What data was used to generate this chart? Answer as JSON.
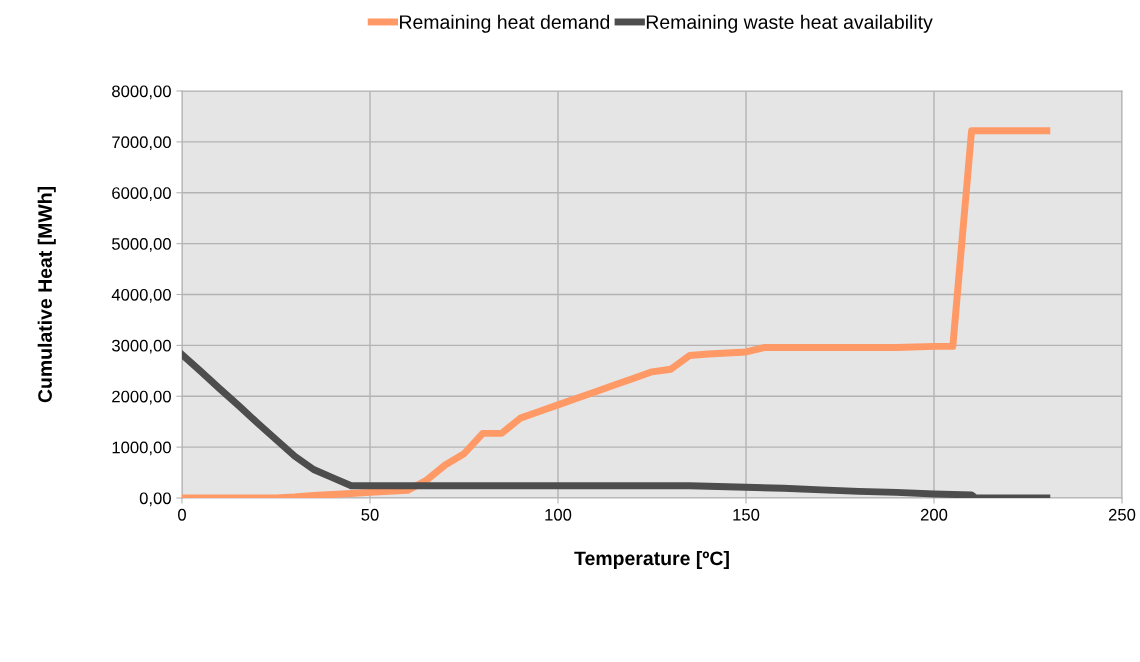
{
  "chart_data": {
    "type": "line",
    "xlabel": "Temperature [ºC]",
    "ylabel": "Cumulative Heat [MWh]",
    "xlim": [
      0,
      250
    ],
    "xticks": [
      0,
      50,
      100,
      150,
      200,
      250
    ],
    "ylim": [
      0,
      8000
    ],
    "yticks": [
      {
        "value": 0,
        "label": "0,00"
      },
      {
        "value": 1000,
        "label": "1000,00"
      },
      {
        "value": 2000,
        "label": "2000,00"
      },
      {
        "value": 3000,
        "label": "3000,00"
      },
      {
        "value": 4000,
        "label": "4000,00"
      },
      {
        "value": 5000,
        "label": "5000,00"
      },
      {
        "value": 6000,
        "label": "6000,00"
      },
      {
        "value": 7000,
        "label": "7000,00"
      },
      {
        "value": 8000,
        "label": "8000,00"
      }
    ],
    "grid": true,
    "legend": "top",
    "marker": "none",
    "line_style": "solid",
    "series": [
      {
        "name": "Remaining heat demand",
        "color": "#ff9966",
        "x": [
          0,
          25,
          30,
          35,
          40,
          45,
          50,
          55,
          60,
          65,
          70,
          75,
          80,
          85,
          90,
          95,
          100,
          105,
          110,
          115,
          120,
          125,
          130,
          135,
          140,
          145,
          150,
          155,
          160,
          170,
          180,
          190,
          200,
          205,
          210,
          215,
          220,
          230
        ],
        "values": [
          0,
          0,
          20,
          50,
          70,
          90,
          110,
          130,
          150,
          350,
          650,
          870,
          1270,
          1270,
          1570,
          1700,
          1830,
          1960,
          2090,
          2220,
          2350,
          2480,
          2530,
          2800,
          2830,
          2850,
          2870,
          2960,
          2960,
          2960,
          2960,
          2960,
          2980,
          2980,
          7220,
          7220,
          7220,
          7220
        ]
      },
      {
        "name": "Remaining waste heat availability",
        "color": "#4d4d4d",
        "x": [
          0,
          5,
          10,
          15,
          20,
          25,
          30,
          35,
          40,
          45,
          50,
          100,
          135,
          140,
          150,
          160,
          170,
          180,
          190,
          200,
          210,
          211,
          230
        ],
        "values": [
          2820,
          2490,
          2150,
          1820,
          1480,
          1150,
          820,
          560,
          400,
          240,
          240,
          240,
          240,
          230,
          210,
          190,
          160,
          130,
          110,
          80,
          60,
          0,
          0
        ]
      }
    ]
  }
}
